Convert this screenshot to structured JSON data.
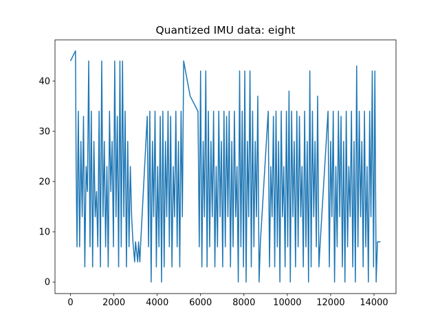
{
  "chart_data": {
    "type": "line",
    "title": "Quantized IMU data: eight",
    "x": [
      0,
      230,
      260,
      300,
      360,
      420,
      480,
      540,
      600,
      660,
      720,
      780,
      840,
      900,
      960,
      1020,
      1080,
      1140,
      1200,
      1260,
      1320,
      1380,
      1440,
      1500,
      1560,
      1620,
      1680,
      1740,
      1800,
      1860,
      1920,
      1980,
      2040,
      2100,
      2160,
      2220,
      2280,
      2340,
      2400,
      2460,
      2520,
      2580,
      2640,
      2700,
      2760,
      2820,
      2880,
      2960,
      3000,
      3100,
      3140,
      3200,
      3240,
      3540,
      3600,
      3660,
      3720,
      3780,
      3840,
      3900,
      3960,
      4020,
      4080,
      4140,
      4200,
      4260,
      4320,
      4380,
      4440,
      4500,
      4560,
      4620,
      4680,
      4740,
      4800,
      4860,
      4920,
      4980,
      5040,
      5100,
      5160,
      5220,
      5520,
      5880,
      5940,
      6000,
      6060,
      6120,
      6180,
      6240,
      6300,
      6360,
      6420,
      6480,
      6540,
      6600,
      6660,
      6720,
      6780,
      6840,
      6900,
      6960,
      7020,
      7080,
      7140,
      7200,
      7260,
      7320,
      7380,
      7440,
      7500,
      7560,
      7620,
      7680,
      7740,
      7800,
      7860,
      7920,
      7980,
      8040,
      8100,
      8160,
      8220,
      8280,
      8340,
      8400,
      8460,
      8520,
      8580,
      8640,
      8700,
      8760,
      9120,
      9180,
      9240,
      9300,
      9360,
      9420,
      9480,
      9540,
      9600,
      9660,
      9720,
      9780,
      9840,
      9900,
      9960,
      10020,
      10080,
      10140,
      10200,
      10260,
      10320,
      10380,
      10440,
      10500,
      10560,
      10620,
      10680,
      10740,
      10800,
      10860,
      10920,
      10980,
      11040,
      11100,
      11160,
      11220,
      11280,
      11340,
      11400,
      11460,
      11520,
      11880,
      11940,
      12000,
      12060,
      12120,
      12180,
      12240,
      12300,
      12360,
      12420,
      12480,
      12540,
      12600,
      12660,
      12720,
      12780,
      12840,
      12900,
      12960,
      13020,
      13080,
      13140,
      13200,
      13260,
      13320,
      13380,
      13440,
      13500,
      13560,
      13620,
      13680,
      13740,
      13800,
      13860,
      13920,
      13980,
      14040,
      14100,
      14160,
      14300
    ],
    "series": [
      {
        "color": "#1f77b4",
        "values": [
          44,
          46,
          23,
          7,
          34,
          7,
          28,
          13,
          33,
          3,
          23,
          18,
          44,
          7,
          34,
          3,
          28,
          13,
          18,
          7,
          34,
          3,
          44,
          13,
          28,
          7,
          23,
          3,
          34,
          18,
          28,
          7,
          44,
          13,
          33,
          3,
          44,
          7,
          44,
          13,
          34,
          3,
          28,
          7,
          23,
          13,
          8,
          4,
          8,
          4,
          8,
          4,
          8,
          33,
          7,
          34,
          0,
          28,
          13,
          34,
          3,
          23,
          7,
          33,
          0,
          34,
          3,
          28,
          13,
          34,
          7,
          33,
          3,
          23,
          13,
          34,
          7,
          28,
          3,
          34,
          13,
          44,
          37,
          34,
          7,
          42,
          3,
          28,
          13,
          42,
          3,
          34,
          7,
          28,
          13,
          34,
          3,
          23,
          7,
          34,
          13,
          28,
          3,
          34,
          7,
          33,
          13,
          34,
          3,
          28,
          7,
          34,
          13,
          23,
          0,
          42,
          7,
          34,
          3,
          42,
          0,
          28,
          13,
          42,
          3,
          34,
          7,
          28,
          13,
          37,
          0,
          8,
          34,
          3,
          23,
          13,
          33,
          3,
          34,
          7,
          28,
          0,
          34,
          13,
          23,
          3,
          34,
          7,
          38,
          0,
          34,
          13,
          28,
          3,
          34,
          7,
          33,
          13,
          23,
          3,
          34,
          7,
          28,
          0,
          42,
          3,
          34,
          13,
          28,
          7,
          37,
          3,
          8,
          34,
          3,
          28,
          13,
          34,
          0,
          23,
          7,
          34,
          13,
          33,
          3,
          28,
          0,
          34,
          7,
          23,
          13,
          34,
          3,
          28,
          0,
          43,
          7,
          34,
          13,
          28,
          3,
          34,
          7,
          23,
          0,
          34,
          13,
          42,
          3,
          42,
          0,
          8,
          8
        ]
      }
    ],
    "xlim": [
      -715,
      15015
    ],
    "ylim": [
      -2.3,
      48.2
    ],
    "xticks": [
      0,
      2000,
      4000,
      6000,
      8000,
      10000,
      12000,
      14000
    ],
    "yticks": [
      0,
      10,
      20,
      30,
      40
    ]
  }
}
